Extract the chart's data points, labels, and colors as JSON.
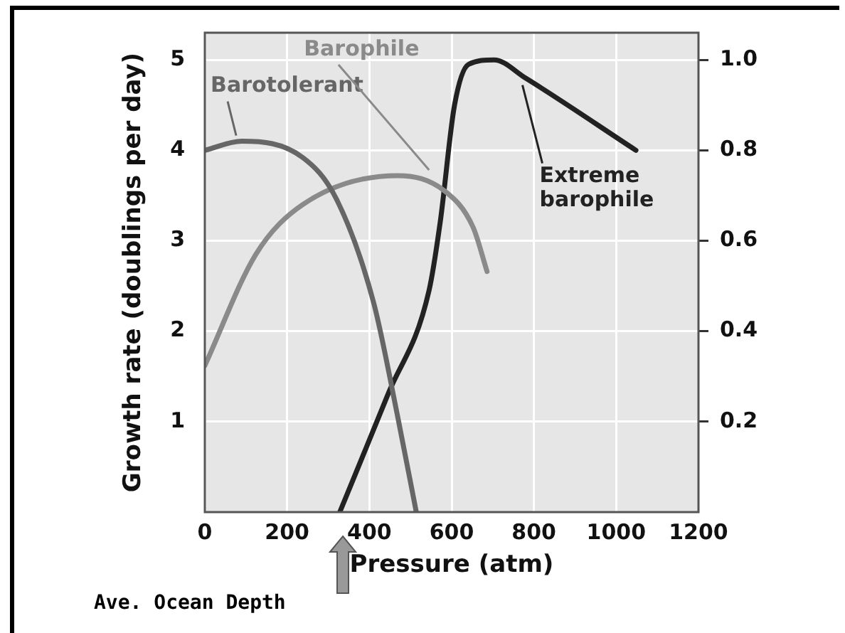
{
  "chart_data": {
    "type": "line",
    "xlabel": "Pressure (atm)",
    "ylabel": "Growth rate (doublings per day)",
    "xlim": [
      0,
      1200
    ],
    "xticks": [
      0,
      200,
      400,
      600,
      800,
      1000,
      1200
    ],
    "ylim": [
      0,
      5.3
    ],
    "yticks": [
      1,
      2,
      3,
      4,
      5
    ],
    "y2lim": [
      0,
      1.06
    ],
    "y2ticks": [
      0.2,
      0.4,
      0.6,
      0.8,
      {
        "value": 1,
        "label": "1.0"
      }
    ],
    "grid": true,
    "legend": false,
    "marker": "none",
    "line_style": "solid",
    "series": [
      {
        "name": "Barotolerant",
        "color": "#666666",
        "x": [
          0,
          90,
          238,
          320,
          410,
          469,
          514
        ],
        "values": [
          4.0,
          4.1,
          3.92,
          3.46,
          2.32,
          1.05,
          0
        ]
      },
      {
        "name": "Barophile",
        "color": "#8a8a8a",
        "x": [
          0,
          124,
          238,
          469,
          583,
          652,
          686
        ],
        "values": [
          1.62,
          2.85,
          3.4,
          3.72,
          3.55,
          3.15,
          2.66
        ]
      },
      {
        "name": "Extreme barophile",
        "color": "#222222",
        "axis": "y2",
        "x": [
          328,
          445,
          545,
          572,
          607,
          641,
          703,
          779,
          1048
        ],
        "values": [
          0,
          0.26,
          0.49,
          0.64,
          0.9,
          0.99,
          1.0,
          0.96,
          0.8
        ]
      }
    ],
    "annotations": [
      "Ave. Ocean Depth"
    ]
  }
}
